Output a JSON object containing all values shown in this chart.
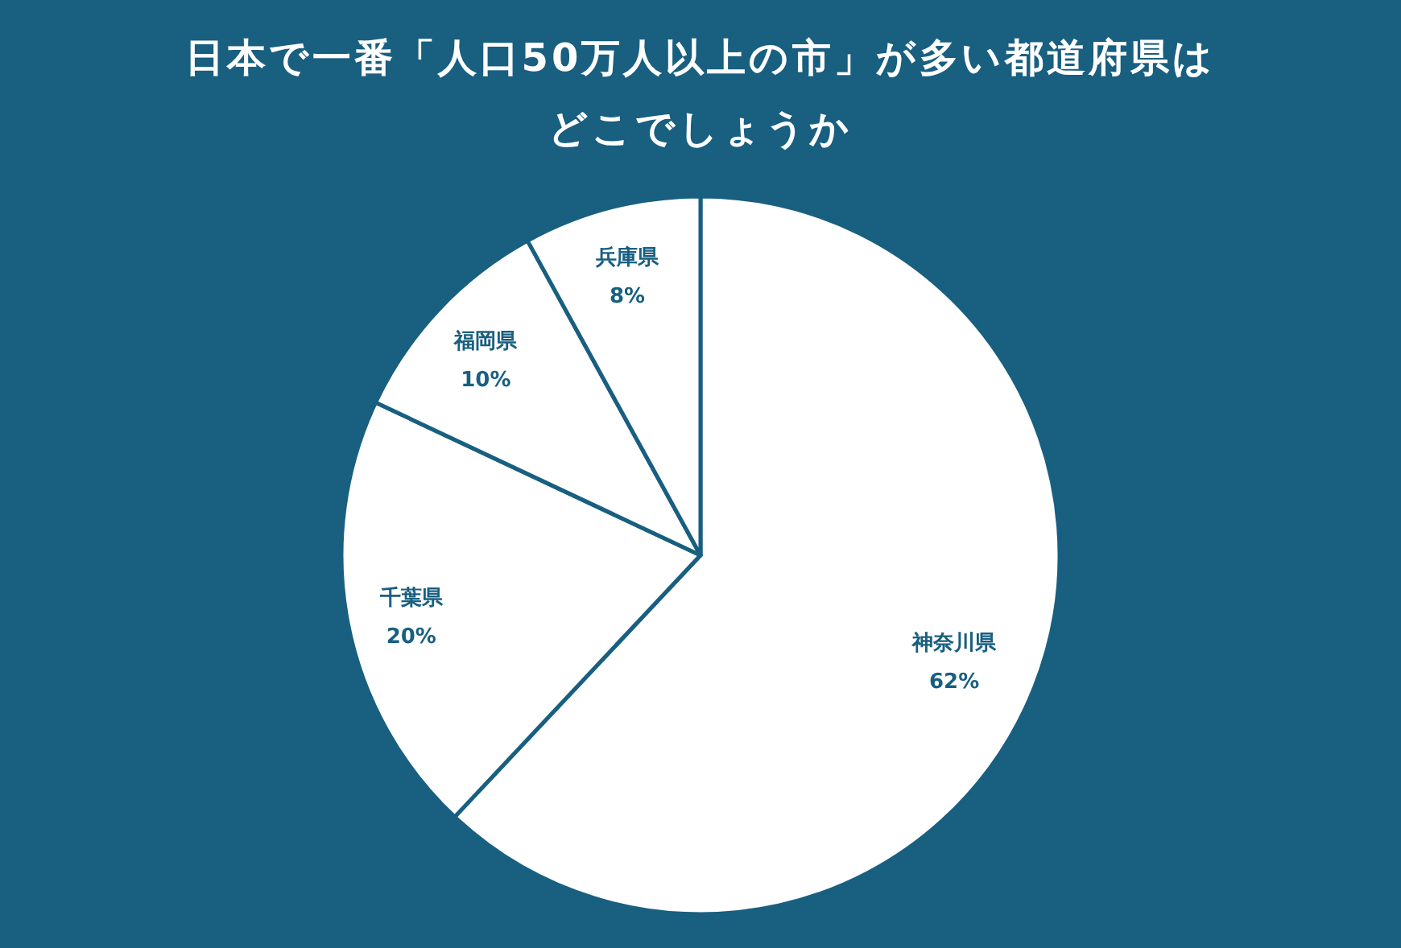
{
  "chart_data": {
    "type": "pie",
    "title": "日本で一番「人口50万人以上の市」が多い都道府県はどこでしょうか",
    "categories": [
      "神奈川県",
      "千葉県",
      "福岡県",
      "兵庫県"
    ],
    "values": [
      62,
      20,
      10,
      8
    ],
    "colors": [
      "#ffffff",
      "#ffffff",
      "#ffffff",
      "#ffffff"
    ],
    "value_labels": [
      "62%",
      "20%",
      "10%",
      "8%"
    ],
    "legend": false
  }
}
